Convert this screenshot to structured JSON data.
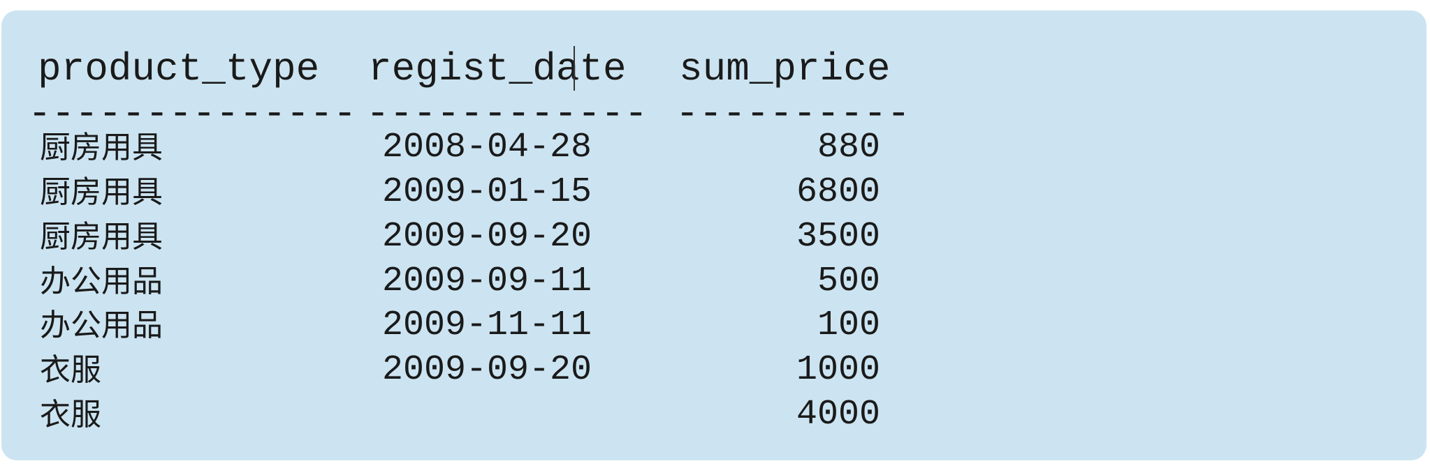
{
  "table": {
    "columns": [
      "product_type",
      "regist_date",
      "sum_price"
    ],
    "separators": [
      "--------------",
      "------------",
      "----------"
    ],
    "rows": [
      {
        "product_type": "厨房用具",
        "regist_date": "2008-04-28",
        "sum_price": "880"
      },
      {
        "product_type": "厨房用具",
        "regist_date": "2009-01-15",
        "sum_price": "6800"
      },
      {
        "product_type": "厨房用具",
        "regist_date": "2009-09-20",
        "sum_price": "3500"
      },
      {
        "product_type": "办公用品",
        "regist_date": "2009-09-11",
        "sum_price": "500"
      },
      {
        "product_type": "办公用品",
        "regist_date": "2009-11-11",
        "sum_price": "100"
      },
      {
        "product_type": "衣服",
        "regist_date": "2009-09-20",
        "sum_price": "1000"
      },
      {
        "product_type": "衣服",
        "regist_date": "",
        "sum_price": "4000"
      }
    ]
  },
  "colors": {
    "panel_background": "#cce4f1",
    "text": "#1a1a1a"
  }
}
